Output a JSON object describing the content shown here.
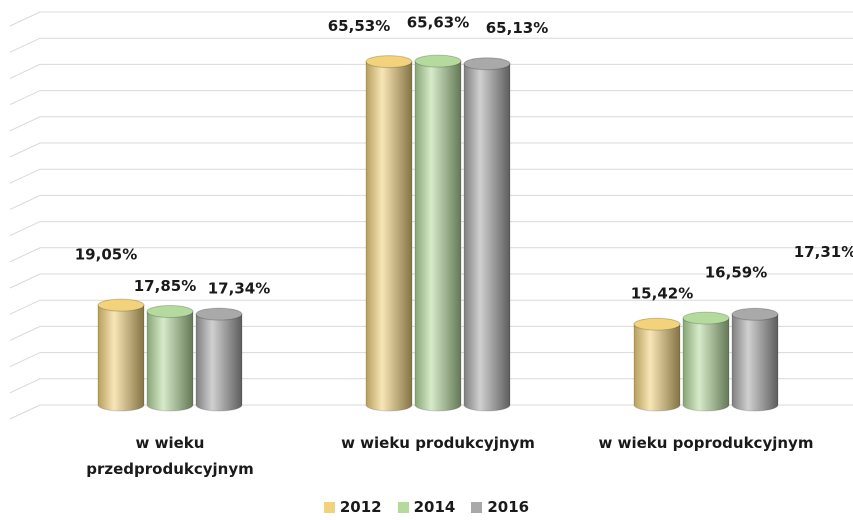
{
  "chart_data": {
    "type": "bar",
    "categories": [
      "w wieku przedprodukcyjnym",
      "w wieku produkcyjnym",
      "w wieku poprodukcyjnym"
    ],
    "series": [
      {
        "name": "2012",
        "color": "#f2d27a",
        "values": [
          19.05,
          65.53,
          15.42
        ],
        "value_labels": [
          "19,05%",
          "65,53%",
          "15,42%"
        ]
      },
      {
        "name": "2014",
        "color": "#b5da9d",
        "values": [
          17.85,
          65.63,
          16.59
        ],
        "value_labels": [
          "17,85%",
          "65,63%",
          "16,59%"
        ]
      },
      {
        "name": "2016",
        "color": "#a9a9a9",
        "values": [
          17.34,
          65.13,
          17.31
        ],
        "value_labels": [
          "17,34%",
          "65,13%",
          "17,31%"
        ]
      }
    ],
    "ylim": [
      0,
      75
    ],
    "yticks": [
      0,
      5,
      10,
      15,
      20,
      25,
      30,
      35,
      40,
      45,
      50,
      55,
      60,
      65,
      70,
      75
    ],
    "grid": true,
    "legend": "bottom"
  }
}
